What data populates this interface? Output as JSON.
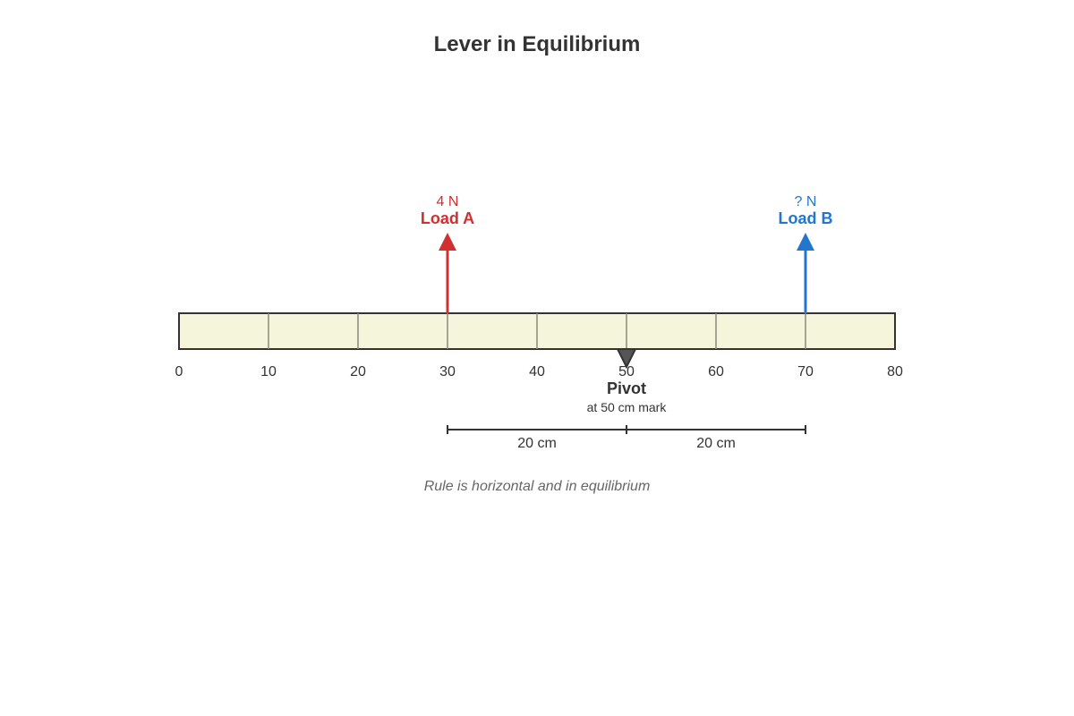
{
  "title": "Lever in Equilibrium",
  "ruler": {
    "start": 0,
    "end": 80,
    "tick_labels": [
      "0",
      "10",
      "20",
      "30",
      "40",
      "50",
      "60",
      "70",
      "80"
    ],
    "fill_color": "#f5f5dc",
    "border_color": "#333333"
  },
  "loads": [
    {
      "name": "Load A",
      "value_label": "4 N",
      "position_cm": 30,
      "color": "#d03030"
    },
    {
      "name": "Load B",
      "value_label": "? N",
      "position_cm": 70,
      "color": "#2277cc"
    }
  ],
  "pivot": {
    "label": "Pivot",
    "note": "at 50 cm mark",
    "position_cm": 50,
    "color": "#555555"
  },
  "dimensions": [
    {
      "from_cm": 30,
      "to_cm": 50,
      "label": "20 cm"
    },
    {
      "from_cm": 50,
      "to_cm": 70,
      "label": "20 cm"
    }
  ],
  "caption": "Rule is horizontal and in equilibrium"
}
